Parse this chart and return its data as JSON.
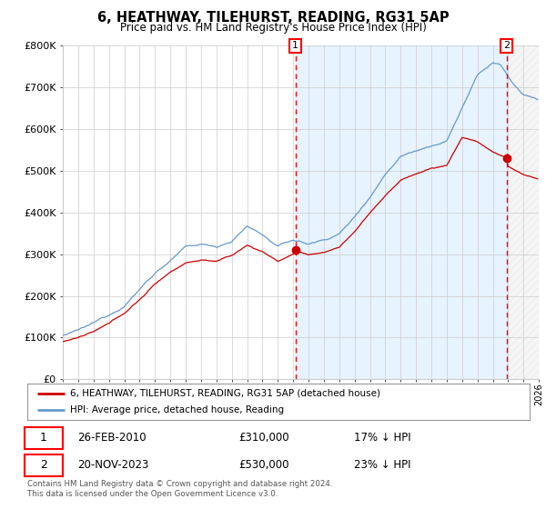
{
  "title": "6, HEATHWAY, TILEHURST, READING, RG31 5AP",
  "subtitle": "Price paid vs. HM Land Registry's House Price Index (HPI)",
  "xlim": [
    1995,
    2026
  ],
  "ylim": [
    0,
    800000
  ],
  "yticks": [
    0,
    100000,
    200000,
    300000,
    400000,
    500000,
    600000,
    700000,
    800000
  ],
  "ytick_labels": [
    "£0",
    "£100K",
    "£200K",
    "£300K",
    "£400K",
    "£500K",
    "£600K",
    "£700K",
    "£800K"
  ],
  "hpi_color": "#6699cc",
  "price_color": "#cc0000",
  "fill_color": "#ddeeff",
  "sale1_year": 2010.15,
  "sale1_price": 310000,
  "sale2_year": 2023.89,
  "sale2_price": 530000,
  "legend1": "6, HEATHWAY, TILEHURST, READING, RG31 5AP (detached house)",
  "legend2": "HPI: Average price, detached house, Reading",
  "note1_date": "26-FEB-2010",
  "note1_price": "£310,000",
  "note1_hpi": "17% ↓ HPI",
  "note2_date": "20-NOV-2023",
  "note2_price": "£530,000",
  "note2_hpi": "23% ↓ HPI",
  "footer": "Contains HM Land Registry data © Crown copyright and database right 2024.\nThis data is licensed under the Open Government Licence v3.0.",
  "background_color": "#ffffff",
  "grid_color": "#cccccc"
}
